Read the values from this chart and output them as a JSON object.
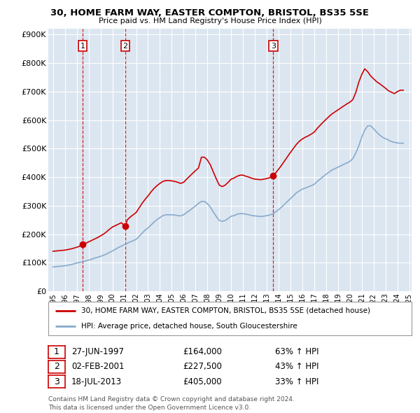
{
  "title": "30, HOME FARM WAY, EASTER COMPTON, BRISTOL, BS35 5SE",
  "subtitle": "Price paid vs. HM Land Registry's House Price Index (HPI)",
  "legend_line1": "30, HOME FARM WAY, EASTER COMPTON, BRISTOL, BS35 5SE (detached house)",
  "legend_line2": "HPI: Average price, detached house, South Gloucestershire",
  "footer_line1": "Contains HM Land Registry data © Crown copyright and database right 2024.",
  "footer_line2": "This data is licensed under the Open Government Licence v3.0.",
  "sale_color": "#cc0000",
  "hpi_color": "#88aacc",
  "bg_color": "#dce6f1",
  "grid_color": "#ffffff",
  "ylim": [
    0,
    920000
  ],
  "yticks": [
    0,
    100000,
    200000,
    300000,
    400000,
    500000,
    600000,
    700000,
    800000,
    900000
  ],
  "ytick_labels": [
    "£0",
    "£100K",
    "£200K",
    "£300K",
    "£400K",
    "£500K",
    "£600K",
    "£700K",
    "£800K",
    "£900K"
  ],
  "sales": [
    {
      "date": 1997.49,
      "price": 164000,
      "label": "1"
    },
    {
      "date": 2001.09,
      "price": 227500,
      "label": "2"
    },
    {
      "date": 2013.55,
      "price": 405000,
      "label": "3"
    }
  ],
  "sale_annotations": [
    {
      "label": "1",
      "date": "27-JUN-1997",
      "price": "£164,000",
      "change": "63% ↑ HPI"
    },
    {
      "label": "2",
      "date": "02-FEB-2001",
      "price": "£227,500",
      "change": "43% ↑ HPI"
    },
    {
      "label": "3",
      "date": "18-JUL-2013",
      "price": "£405,000",
      "change": "33% ↑ HPI"
    }
  ],
  "hpi_x": [
    1995.0,
    1995.25,
    1995.5,
    1995.75,
    1996.0,
    1996.25,
    1996.5,
    1996.75,
    1997.0,
    1997.25,
    1997.5,
    1997.75,
    1998.0,
    1998.25,
    1998.5,
    1998.75,
    1999.0,
    1999.25,
    1999.5,
    1999.75,
    2000.0,
    2000.25,
    2000.5,
    2000.75,
    2001.0,
    2001.25,
    2001.5,
    2001.75,
    2002.0,
    2002.25,
    2002.5,
    2002.75,
    2003.0,
    2003.25,
    2003.5,
    2003.75,
    2004.0,
    2004.25,
    2004.5,
    2004.75,
    2005.0,
    2005.25,
    2005.5,
    2005.75,
    2006.0,
    2006.25,
    2006.5,
    2006.75,
    2007.0,
    2007.25,
    2007.5,
    2007.75,
    2008.0,
    2008.25,
    2008.5,
    2008.75,
    2009.0,
    2009.25,
    2009.5,
    2009.75,
    2010.0,
    2010.25,
    2010.5,
    2010.75,
    2011.0,
    2011.25,
    2011.5,
    2011.75,
    2012.0,
    2012.25,
    2012.5,
    2012.75,
    2013.0,
    2013.25,
    2013.5,
    2013.75,
    2014.0,
    2014.25,
    2014.5,
    2014.75,
    2015.0,
    2015.25,
    2015.5,
    2015.75,
    2016.0,
    2016.25,
    2016.5,
    2016.75,
    2017.0,
    2017.25,
    2017.5,
    2017.75,
    2018.0,
    2018.25,
    2018.5,
    2018.75,
    2019.0,
    2019.25,
    2019.5,
    2019.75,
    2020.0,
    2020.25,
    2020.5,
    2020.75,
    2021.0,
    2021.25,
    2021.5,
    2021.75,
    2022.0,
    2022.25,
    2022.5,
    2022.75,
    2023.0,
    2023.25,
    2023.5,
    2023.75,
    2024.0,
    2024.25,
    2024.5
  ],
  "hpi_y": [
    85000,
    86000,
    87000,
    88000,
    89000,
    91000,
    93000,
    96000,
    99000,
    101000,
    103000,
    106000,
    109000,
    112000,
    116000,
    119000,
    122000,
    126000,
    130000,
    136000,
    141000,
    147000,
    153000,
    158000,
    163000,
    168000,
    173000,
    177000,
    182000,
    192000,
    203000,
    214000,
    222000,
    232000,
    242000,
    251000,
    258000,
    265000,
    268000,
    268000,
    268000,
    267000,
    265000,
    264000,
    268000,
    276000,
    283000,
    291000,
    299000,
    308000,
    315000,
    315000,
    307000,
    295000,
    278000,
    262000,
    248000,
    245000,
    248000,
    255000,
    263000,
    265000,
    270000,
    272000,
    272000,
    270000,
    268000,
    265000,
    264000,
    263000,
    262000,
    263000,
    265000,
    267000,
    271000,
    278000,
    286000,
    295000,
    305000,
    315000,
    325000,
    335000,
    345000,
    352000,
    358000,
    362000,
    366000,
    370000,
    375000,
    385000,
    393000,
    402000,
    410000,
    418000,
    425000,
    430000,
    435000,
    440000,
    445000,
    450000,
    455000,
    465000,
    485000,
    510000,
    540000,
    565000,
    580000,
    580000,
    570000,
    558000,
    548000,
    540000,
    535000,
    530000,
    525000,
    522000,
    520000,
    519000,
    519000
  ],
  "sale_x": [
    1995.0,
    1995.25,
    1995.5,
    1995.75,
    1996.0,
    1996.25,
    1996.5,
    1996.75,
    1997.0,
    1997.25,
    1997.49,
    1997.75,
    1998.0,
    1998.25,
    1998.5,
    1998.75,
    1999.0,
    1999.25,
    1999.5,
    1999.75,
    2000.0,
    2000.25,
    2000.5,
    2000.75,
    2001.09,
    2001.25,
    2001.5,
    2001.75,
    2002.0,
    2002.25,
    2002.5,
    2002.75,
    2003.0,
    2003.25,
    2003.5,
    2003.75,
    2004.0,
    2004.25,
    2004.5,
    2004.75,
    2005.0,
    2005.25,
    2005.5,
    2005.75,
    2006.0,
    2006.25,
    2006.5,
    2006.75,
    2007.0,
    2007.25,
    2007.5,
    2007.75,
    2008.0,
    2008.25,
    2008.5,
    2008.75,
    2009.0,
    2009.25,
    2009.5,
    2009.75,
    2010.0,
    2010.25,
    2010.5,
    2010.75,
    2011.0,
    2011.25,
    2011.5,
    2011.75,
    2012.0,
    2012.25,
    2012.5,
    2012.75,
    2013.0,
    2013.25,
    2013.55,
    2013.75,
    2014.0,
    2014.25,
    2014.5,
    2014.75,
    2015.0,
    2015.25,
    2015.5,
    2015.75,
    2016.0,
    2016.25,
    2016.5,
    2016.75,
    2017.0,
    2017.25,
    2017.5,
    2017.75,
    2018.0,
    2018.25,
    2018.5,
    2018.75,
    2019.0,
    2019.25,
    2019.5,
    2019.75,
    2020.0,
    2020.25,
    2020.5,
    2020.75,
    2021.0,
    2021.25,
    2021.5,
    2021.75,
    2022.0,
    2022.25,
    2022.5,
    2022.75,
    2023.0,
    2023.25,
    2023.5,
    2023.75,
    2024.0,
    2024.25,
    2024.5
  ],
  "sale_y": [
    140000,
    141000,
    142000,
    143000,
    144000,
    146000,
    148000,
    151000,
    154000,
    158000,
    164000,
    168000,
    173000,
    178000,
    183000,
    188000,
    194000,
    200000,
    208000,
    217000,
    225000,
    230000,
    235000,
    240000,
    227500,
    250000,
    260000,
    268000,
    276000,
    292000,
    308000,
    322000,
    334000,
    348000,
    360000,
    370000,
    378000,
    385000,
    388000,
    388000,
    387000,
    385000,
    382000,
    378000,
    382000,
    393000,
    403000,
    413000,
    423000,
    432000,
    470000,
    470000,
    460000,
    443000,
    418000,
    394000,
    372000,
    367000,
    372000,
    382000,
    393000,
    397000,
    403000,
    407000,
    407000,
    403000,
    400000,
    396000,
    393000,
    392000,
    391000,
    393000,
    395000,
    398000,
    405000,
    415000,
    428000,
    442000,
    457000,
    472000,
    487000,
    501000,
    515000,
    526000,
    534000,
    540000,
    545000,
    551000,
    558000,
    571000,
    582000,
    593000,
    603000,
    613000,
    622000,
    629000,
    636000,
    643000,
    650000,
    657000,
    663000,
    672000,
    697000,
    733000,
    760000,
    780000,
    770000,
    755000,
    745000,
    735000,
    728000,
    720000,
    712000,
    703000,
    698000,
    693000,
    700000,
    705000,
    705000
  ]
}
